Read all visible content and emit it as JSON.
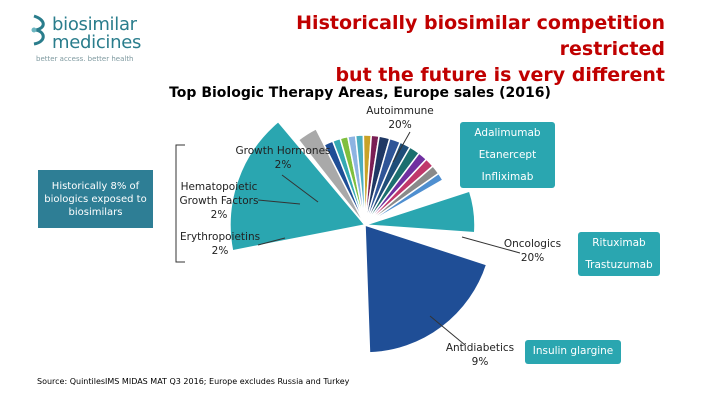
{
  "logo": {
    "line1": "biosimilar",
    "line2": "medicines",
    "tagline": "better access. better health"
  },
  "title": {
    "line1": "Historically biosimilar competition restricted",
    "line2": "but the future is very different"
  },
  "subtitle": "Top Biologic Therapy Areas, Europe sales (2016)",
  "callout": "Historically 8% of biologics exposed to biosimilars",
  "labels": {
    "autoimmune": {
      "name": "Autoimmune",
      "pct": "20%"
    },
    "growth_hormones": {
      "name": "Growth Hormones",
      "pct": "2%"
    },
    "hematopoietic": {
      "name": "Hematopoietic Growth Factors",
      "pct": "2%"
    },
    "erythropoietins": {
      "name": "Erythropoietins",
      "pct": "2%"
    },
    "oncologics": {
      "name": "Oncologics",
      "pct": "20%"
    },
    "antidiabetics": {
      "name": "Antidiabetics",
      "pct": "9%"
    }
  },
  "drugs": {
    "autoimmune": [
      "Adalimumab",
      "Etanercept",
      "Infliximab"
    ],
    "oncologics": [
      "Rituximab",
      "Trastuzumab"
    ],
    "antidiabetics": [
      "Insulin glargine"
    ]
  },
  "source": "Source: QuintilesIMS MIDAS MAT Q3 2016; Europe excludes Russia and Turkey",
  "colors": {
    "title": "#c00000",
    "teal": "#2aa6b0",
    "blue": "#1f4e96",
    "callout": "#2e7e95",
    "drug_box": "#2aa6b0"
  },
  "chart_data": {
    "type": "pie",
    "title": "Top Biologic Therapy Areas, Europe sales (2016)",
    "style": "rose",
    "slices": [
      {
        "label": "Autoimmune",
        "value": 20,
        "color": "#2aa6b0"
      },
      {
        "label": "",
        "value": 2,
        "color": "#a9a9a9"
      },
      {
        "label": "",
        "value": 2,
        "color": "#1f4e96"
      },
      {
        "label": "",
        "value": 2,
        "color": "#33a9b3"
      },
      {
        "label": "Growth Hormones",
        "value": 2,
        "color": "#7fbf3f"
      },
      {
        "label": "",
        "value": 2,
        "color": "#8db3e2"
      },
      {
        "label": "Hematopoietic Growth Factors",
        "value": 2,
        "color": "#4aaec0"
      },
      {
        "label": "",
        "value": 2,
        "color": "#c9a227"
      },
      {
        "label": "Erythropoietins",
        "value": 2,
        "color": "#7a1f55"
      },
      {
        "label": "",
        "value": 2,
        "color": "#1f3864"
      },
      {
        "label": "",
        "value": 2,
        "color": "#2f5597"
      },
      {
        "label": "",
        "value": 2,
        "color": "#1f4e79"
      },
      {
        "label": "",
        "value": 2,
        "color": "#1c6f6f"
      },
      {
        "label": "",
        "value": 2,
        "color": "#7030a0"
      },
      {
        "label": "",
        "value": 2,
        "color": "#c0386b"
      },
      {
        "label": "",
        "value": 2,
        "color": "#8a8a8a"
      },
      {
        "label": "",
        "value": 2,
        "color": "#4f8fd0"
      },
      {
        "label": "Antidiabetics",
        "value": 9,
        "color": "#2aa6b0"
      },
      {
        "label": "Oncologics",
        "value": 20,
        "color": "#1f4e96"
      }
    ]
  }
}
